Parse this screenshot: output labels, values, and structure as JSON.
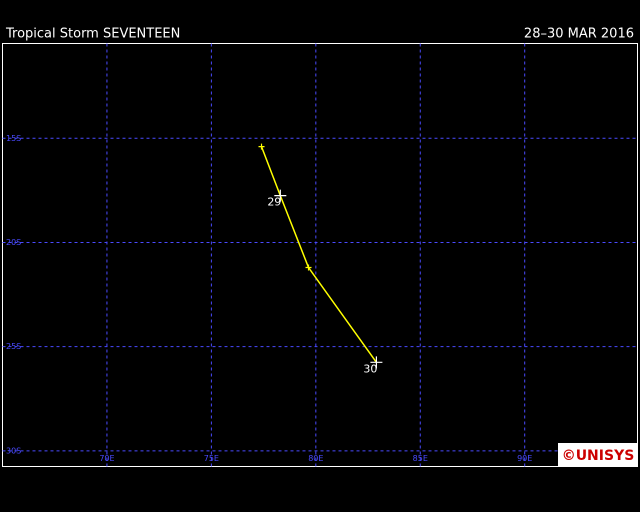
{
  "chart_data": {
    "type": "track",
    "title": "Tropical Storm SEVENTEEN",
    "date_range": "28–30 MAR 2016",
    "x": [
      77.4,
      78.3,
      79.65,
      82.9
    ],
    "values": [
      -15.4,
      -17.75,
      -21.2,
      -25.75
    ],
    "point_labels": [
      null,
      "29",
      null,
      "30"
    ],
    "color": "#ffff00",
    "grid_color": "#4a4aff",
    "xlim": [
      65,
      95.4
    ],
    "ylim": [
      -30.75,
      -10.45
    ],
    "xticks": [
      {
        "value": 70,
        "label": "70E"
      },
      {
        "value": 75,
        "label": "75E"
      },
      {
        "value": 80,
        "label": "80E"
      },
      {
        "value": 85,
        "label": "85E"
      },
      {
        "value": 90,
        "label": "90E"
      }
    ],
    "yticks": [
      {
        "value": -15,
        "label": "15S"
      },
      {
        "value": -20,
        "label": "20S"
      },
      {
        "value": -25,
        "label": "25S"
      },
      {
        "value": -30,
        "label": "30S"
      }
    ],
    "grid": true,
    "logo": "©UNISYS"
  }
}
